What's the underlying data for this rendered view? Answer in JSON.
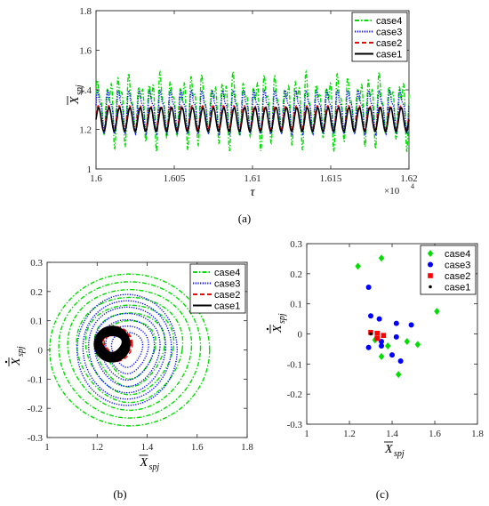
{
  "chart_data": [
    {
      "panel": "(a)",
      "type": "line",
      "xlabel": "τ",
      "xlabel_multiplier": "×10",
      "xlabel_multiplier_exp": "4",
      "ylabel": "X",
      "ylabel_sub": "spj",
      "xlim": [
        1.6,
        1.62
      ],
      "ylim": [
        1.0,
        1.8
      ],
      "xticks": [
        "1.6",
        "1.605",
        "1.61",
        "1.615",
        "1.62"
      ],
      "yticks": [
        "1",
        "1.2",
        "1.4",
        "1.6",
        "1.8"
      ],
      "legend_position": "top-right",
      "series": [
        {
          "name": "case4",
          "color": "#00dd00",
          "style": "dashdot",
          "mean": 1.32,
          "amp": 0.22,
          "cycles": 30
        },
        {
          "name": "case3",
          "color": "#0000ff",
          "style": "dotted",
          "mean": 1.3,
          "amp": 0.13,
          "cycles": 30
        },
        {
          "name": "case2",
          "color": "#ff0000",
          "style": "dashed",
          "mean": 1.26,
          "amp": 0.06,
          "cycles": 30
        },
        {
          "name": "case1",
          "color": "#000000",
          "style": "solid",
          "mean": 1.25,
          "amp": 0.06,
          "cycles": 30
        }
      ]
    },
    {
      "panel": "(b)",
      "type": "line",
      "xlabel": "X",
      "xlabel_sub": "spj",
      "ylabel": "X",
      "ylabel_sub": "spj",
      "xlim": [
        1.0,
        1.8
      ],
      "ylim": [
        -0.3,
        0.3
      ],
      "xticks": [
        "1",
        "1.2",
        "1.4",
        "1.6",
        "1.8"
      ],
      "yticks": [
        "-0.3",
        "-0.2",
        "-0.1",
        "0",
        "0.1",
        "0.2",
        "0.3"
      ],
      "legend_position": "top-right",
      "series": [
        {
          "name": "case4",
          "color": "#00dd00",
          "style": "dashdot",
          "center": [
            1.33,
            0.0
          ],
          "rx": [
            0.1,
            0.32
          ],
          "ry": [
            0.1,
            0.26
          ]
        },
        {
          "name": "case3",
          "color": "#0000ff",
          "style": "dotted",
          "center": [
            1.32,
            0.0
          ],
          "rx": [
            0.06,
            0.2
          ],
          "ry": [
            0.06,
            0.19
          ]
        },
        {
          "name": "case2",
          "color": "#ff0000",
          "style": "dashed",
          "center": [
            1.27,
            0.02
          ],
          "rx": [
            0.04,
            0.07
          ],
          "ry": [
            0.03,
            0.06
          ]
        },
        {
          "name": "case1",
          "color": "#000000",
          "style": "solid",
          "center": [
            1.26,
            0.02
          ],
          "rx": [
            0.04,
            0.07
          ],
          "ry": [
            0.03,
            0.06
          ]
        }
      ]
    },
    {
      "panel": "(c)",
      "type": "scatter",
      "xlabel": "X",
      "xlabel_sub": "spj",
      "ylabel": "X",
      "ylabel_sub": "spj",
      "xlim": [
        1.0,
        1.8
      ],
      "ylim": [
        -0.3,
        0.3
      ],
      "xticks": [
        "1",
        "1.2",
        "1.4",
        "1.6",
        "1.8"
      ],
      "yticks": [
        "-0.3",
        "-0.2",
        "-0.1",
        "0",
        "0.1",
        "0.2",
        "0.3"
      ],
      "legend_position": "top-right",
      "series": [
        {
          "name": "case4",
          "color": "#00dd00",
          "marker": "diamond",
          "points": [
            [
              1.24,
              0.225
            ],
            [
              1.35,
              0.252
            ],
            [
              1.61,
              0.075
            ],
            [
              1.32,
              -0.02
            ],
            [
              1.35,
              -0.075
            ],
            [
              1.38,
              -0.04
            ],
            [
              1.43,
              -0.135
            ],
            [
              1.47,
              -0.025
            ],
            [
              1.52,
              -0.035
            ]
          ]
        },
        {
          "name": "case3",
          "color": "#0000ff",
          "marker": "circle",
          "points": [
            [
              1.29,
              0.155
            ],
            [
              1.3,
              0.06
            ],
            [
              1.34,
              0.05
            ],
            [
              1.42,
              0.035
            ],
            [
              1.49,
              0.03
            ],
            [
              1.29,
              -0.045
            ],
            [
              1.35,
              -0.025
            ],
            [
              1.35,
              -0.04
            ],
            [
              1.4,
              -0.07
            ],
            [
              1.42,
              -0.01
            ],
            [
              1.44,
              -0.09
            ]
          ]
        },
        {
          "name": "case2",
          "color": "#ff0000",
          "marker": "square",
          "points": [
            [
              1.3,
              0.005
            ],
            [
              1.33,
              0.002
            ],
            [
              1.33,
              -0.015
            ],
            [
              1.36,
              -0.005
            ]
          ]
        },
        {
          "name": "case1",
          "color": "#000000",
          "marker": "dot",
          "points": [
            [
              1.3,
              0.0
            ]
          ]
        }
      ]
    }
  ],
  "captions": {
    "a": "(a)",
    "b": "(b)",
    "c": "(c)"
  }
}
